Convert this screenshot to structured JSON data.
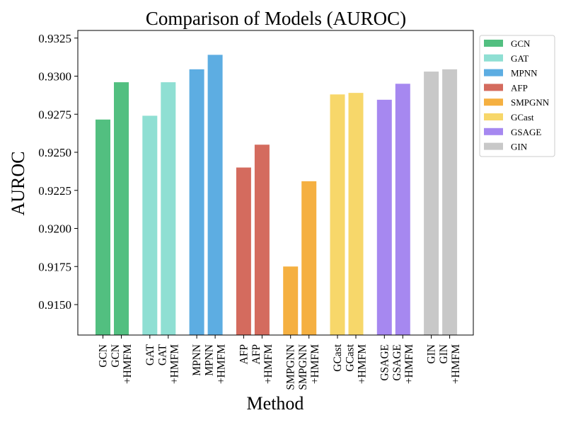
{
  "chart_data": {
    "type": "bar",
    "title": "Comparison of Models (AUROC)",
    "xlabel": "Method",
    "ylabel": "AUROC",
    "ylim": [
      0.913,
      0.933
    ],
    "yticks": [
      "0.9150",
      "0.9175",
      "0.9200",
      "0.9225",
      "0.9250",
      "0.9275",
      "0.9300",
      "0.9325"
    ],
    "legend_position": "outside-top-right",
    "groups": [
      {
        "name": "GCN",
        "color": "#52bf80",
        "bars": [
          {
            "label": "GCN",
            "value": 0.92715
          },
          {
            "label": "GCN\n+HMFM",
            "value": 0.9296
          }
        ]
      },
      {
        "name": "GAT",
        "color": "#8fdfd3",
        "bars": [
          {
            "label": "GAT",
            "value": 0.9274
          },
          {
            "label": "GAT\n+HMFM",
            "value": 0.9296
          }
        ]
      },
      {
        "name": "MPNN",
        "color": "#5dade2",
        "bars": [
          {
            "label": "MPNN",
            "value": 0.93045
          },
          {
            "label": "MPNN\n+HMFM",
            "value": 0.9314
          }
        ]
      },
      {
        "name": "AFP",
        "color": "#d46b5e",
        "bars": [
          {
            "label": "AFP",
            "value": 0.924
          },
          {
            "label": "AFP\n+HMFM",
            "value": 0.9255
          }
        ]
      },
      {
        "name": "SMPGNN",
        "color": "#f5b041",
        "bars": [
          {
            "label": "SMPGNN",
            "value": 0.9175
          },
          {
            "label": "SMPGNN\n+HMFM",
            "value": 0.9231
          }
        ]
      },
      {
        "name": "GCast",
        "color": "#f7d76a",
        "bars": [
          {
            "label": "GCast",
            "value": 0.9288
          },
          {
            "label": "GCast\n+HMFM",
            "value": 0.9289
          }
        ]
      },
      {
        "name": "GSAGE",
        "color": "#a688f0",
        "bars": [
          {
            "label": "GSAGE",
            "value": 0.92845
          },
          {
            "label": "GSAGE\n+HMFM",
            "value": 0.9295
          }
        ]
      },
      {
        "name": "GIN",
        "color": "#c8c8c8",
        "bars": [
          {
            "label": "GIN",
            "value": 0.9303
          },
          {
            "label": "GIN\n+HMFM",
            "value": 0.93045
          }
        ]
      }
    ]
  }
}
